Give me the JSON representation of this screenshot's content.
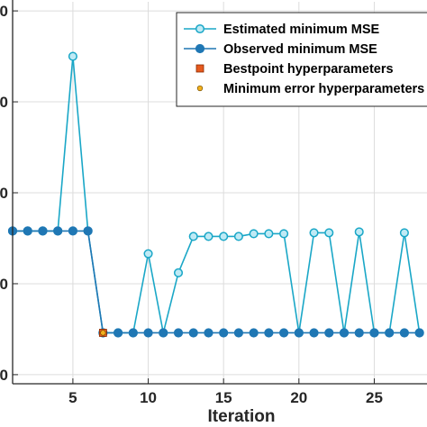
{
  "chart_data": {
    "type": "line",
    "xlabel": "Iteration",
    "ylabel": "",
    "xlim": [
      1,
      28.5
    ],
    "ylim": [
      0.9,
      5.1
    ],
    "x_ticks": [
      5,
      10,
      15,
      20,
      25
    ],
    "y_ticks": [
      1,
      2,
      3,
      4,
      5
    ],
    "y_tick_labels": [
      "0",
      "0",
      "0",
      "0",
      "0"
    ],
    "grid": true,
    "legend_position": "top-right",
    "series": [
      {
        "name": "Estimated minimum MSE",
        "marker": "open-circle",
        "color": "#1AA7C7",
        "x": [
          1,
          2,
          3,
          4,
          5,
          6,
          7,
          8,
          9,
          10,
          11,
          12,
          13,
          14,
          15,
          16,
          17,
          18,
          19,
          20,
          21,
          22,
          23,
          24,
          25,
          26,
          27,
          28
        ],
        "y": [
          2.58,
          2.58,
          2.58,
          2.58,
          4.5,
          2.58,
          1.46,
          1.46,
          1.46,
          2.33,
          1.46,
          2.12,
          2.52,
          2.52,
          2.52,
          2.52,
          2.55,
          2.55,
          2.55,
          1.46,
          2.56,
          2.56,
          1.46,
          2.57,
          1.46,
          1.46,
          2.56,
          1.46
        ]
      },
      {
        "name": "Observed minimum MSE",
        "marker": "filled-circle",
        "color": "#1F77B4",
        "x": [
          1,
          2,
          3,
          4,
          5,
          6,
          7,
          8,
          9,
          10,
          11,
          12,
          13,
          14,
          15,
          16,
          17,
          18,
          19,
          20,
          21,
          22,
          23,
          24,
          25,
          26,
          27,
          28
        ],
        "y": [
          2.58,
          2.58,
          2.58,
          2.58,
          2.58,
          2.58,
          1.46,
          1.46,
          1.46,
          1.46,
          1.46,
          1.46,
          1.46,
          1.46,
          1.46,
          1.46,
          1.46,
          1.46,
          1.46,
          1.46,
          1.46,
          1.46,
          1.46,
          1.46,
          1.46,
          1.46,
          1.46,
          1.46
        ]
      },
      {
        "name": "Bestpoint hyperparameters",
        "marker": "square",
        "color": "#E65A1E",
        "x": [
          7
        ],
        "y": [
          1.46
        ]
      },
      {
        "name": "Minimum error hyperparameters",
        "marker": "small-dot",
        "color": "#F2B01E",
        "x": [
          7
        ],
        "y": [
          1.46
        ]
      }
    ]
  }
}
